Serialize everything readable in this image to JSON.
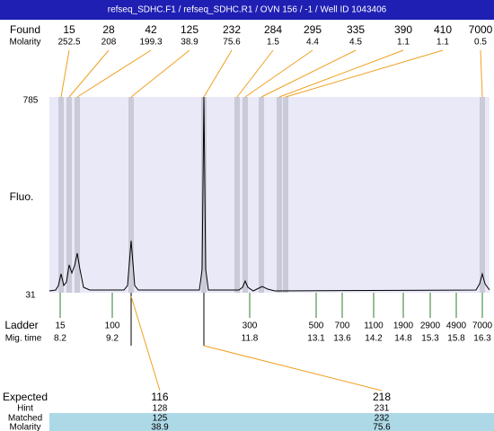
{
  "header": {
    "title": "refseq_SDHC.F1 / refseq_SDHC.R1 / OVN 156 / -1 / Well ID 1043406"
  },
  "found": {
    "label": "Found",
    "sizes": [
      "15",
      "28",
      "42",
      "125",
      "232",
      "284",
      "295",
      "335",
      "390",
      "410",
      "7000"
    ],
    "molarity_label": "Molarity",
    "molarity": [
      "252.5",
      "208",
      "199.3",
      "38.9",
      "75.6",
      "1.5",
      "4.4",
      "4.5",
      "1.1",
      "1.1",
      "0.5"
    ]
  },
  "plot": {
    "y_label": "Fluo.",
    "y_max": "785",
    "y_min": "31"
  },
  "ladder": {
    "label": "Ladder",
    "sizes": [
      "15",
      "100",
      "300",
      "500",
      "700",
      "1100",
      "1900",
      "2900",
      "4900",
      "7000"
    ],
    "mig_label": "Mig. time",
    "mig_times": [
      "8.2",
      "9.2",
      "11.8",
      "13.1",
      "13.6",
      "14.2",
      "14.8",
      "15.3",
      "15.8",
      "16.3"
    ]
  },
  "expected": {
    "labels": [
      "Expected",
      "Hint",
      "Matched",
      "Molarity"
    ],
    "columns": [
      {
        "expected": "116",
        "hint": "128",
        "matched": "125",
        "molarity": "38.9"
      },
      {
        "expected": "218",
        "hint": "231",
        "matched": "232",
        "molarity": "75.6"
      }
    ]
  }
}
